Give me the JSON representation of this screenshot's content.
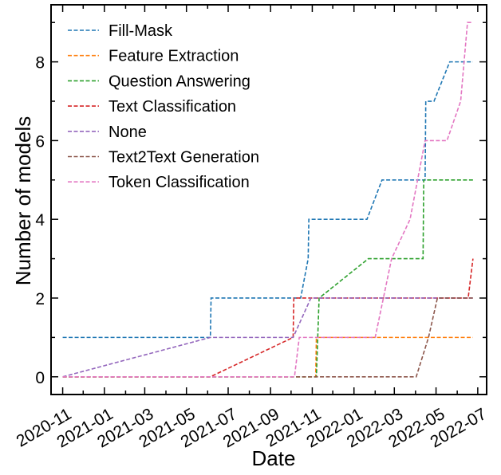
{
  "chart_data": {
    "type": "line",
    "xlabel": "Date",
    "ylabel": "Number of models",
    "xlim": [
      "2020-10-15",
      "2022-07-14"
    ],
    "ylim": [
      -0.45,
      9.45
    ],
    "x_ticks": [
      "2020-11",
      "2021-01",
      "2021-03",
      "2021-05",
      "2021-07",
      "2021-09",
      "2021-11",
      "2022-01",
      "2022-03",
      "2022-05",
      "2022-07"
    ],
    "y_ticks": [
      0,
      2,
      4,
      6,
      8
    ],
    "line_style": "dashed",
    "grid": false,
    "legend": "top-left",
    "series": [
      {
        "name": "Fill-Mask",
        "color": "#1f77b4",
        "points": [
          [
            "2020-11-01",
            1
          ],
          [
            "2021-06-05",
            1
          ],
          [
            "2021-06-06",
            2
          ],
          [
            "2021-10-15",
            2
          ],
          [
            "2021-10-26",
            3
          ],
          [
            "2021-10-27",
            4
          ],
          [
            "2022-01-20",
            4
          ],
          [
            "2022-02-11",
            5
          ],
          [
            "2022-04-15",
            5
          ],
          [
            "2022-04-16",
            7
          ],
          [
            "2022-04-28",
            7
          ],
          [
            "2022-05-21",
            8
          ],
          [
            "2022-06-24",
            8
          ]
        ]
      },
      {
        "name": "Feature Extraction",
        "color": "#ff7f0e",
        "points": [
          [
            "2020-11-01",
            0
          ],
          [
            "2021-11-06",
            0
          ],
          [
            "2021-11-07",
            1
          ],
          [
            "2022-06-24",
            1
          ]
        ]
      },
      {
        "name": "Question Answering",
        "color": "#2ca02c",
        "points": [
          [
            "2020-11-01",
            0
          ],
          [
            "2021-11-07",
            0
          ],
          [
            "2021-11-11",
            2
          ],
          [
            "2022-01-22",
            3
          ],
          [
            "2022-04-12",
            3
          ],
          [
            "2022-04-13",
            5
          ],
          [
            "2022-06-24",
            5
          ]
        ]
      },
      {
        "name": "Text Classification",
        "color": "#d62728",
        "points": [
          [
            "2020-11-01",
            0
          ],
          [
            "2021-06-05",
            0
          ],
          [
            "2021-10-04",
            1
          ],
          [
            "2021-10-05",
            2
          ],
          [
            "2022-06-17",
            2
          ],
          [
            "2022-06-24",
            3
          ]
        ]
      },
      {
        "name": "None",
        "color": "#9467bd",
        "points": [
          [
            "2020-11-01",
            0
          ],
          [
            "2021-06-05",
            1
          ],
          [
            "2021-10-04",
            1
          ],
          [
            "2021-10-30",
            2
          ],
          [
            "2022-06-24",
            2
          ]
        ]
      },
      {
        "name": "Text2Text Generation",
        "color": "#8c564b",
        "points": [
          [
            "2020-11-01",
            0
          ],
          [
            "2022-04-02",
            0
          ],
          [
            "2022-04-20",
            1
          ],
          [
            "2022-05-03",
            2
          ],
          [
            "2022-06-24",
            2
          ]
        ]
      },
      {
        "name": "Token Classification",
        "color": "#e377c2",
        "points": [
          [
            "2020-11-01",
            0
          ],
          [
            "2021-10-06",
            0
          ],
          [
            "2021-10-13",
            1
          ],
          [
            "2022-02-01",
            1
          ],
          [
            "2022-02-25",
            3
          ],
          [
            "2022-03-24",
            4
          ],
          [
            "2022-04-15",
            6
          ],
          [
            "2022-05-17",
            6
          ],
          [
            "2022-06-06",
            7
          ],
          [
            "2022-06-16",
            9
          ],
          [
            "2022-06-24",
            9
          ]
        ]
      }
    ]
  }
}
